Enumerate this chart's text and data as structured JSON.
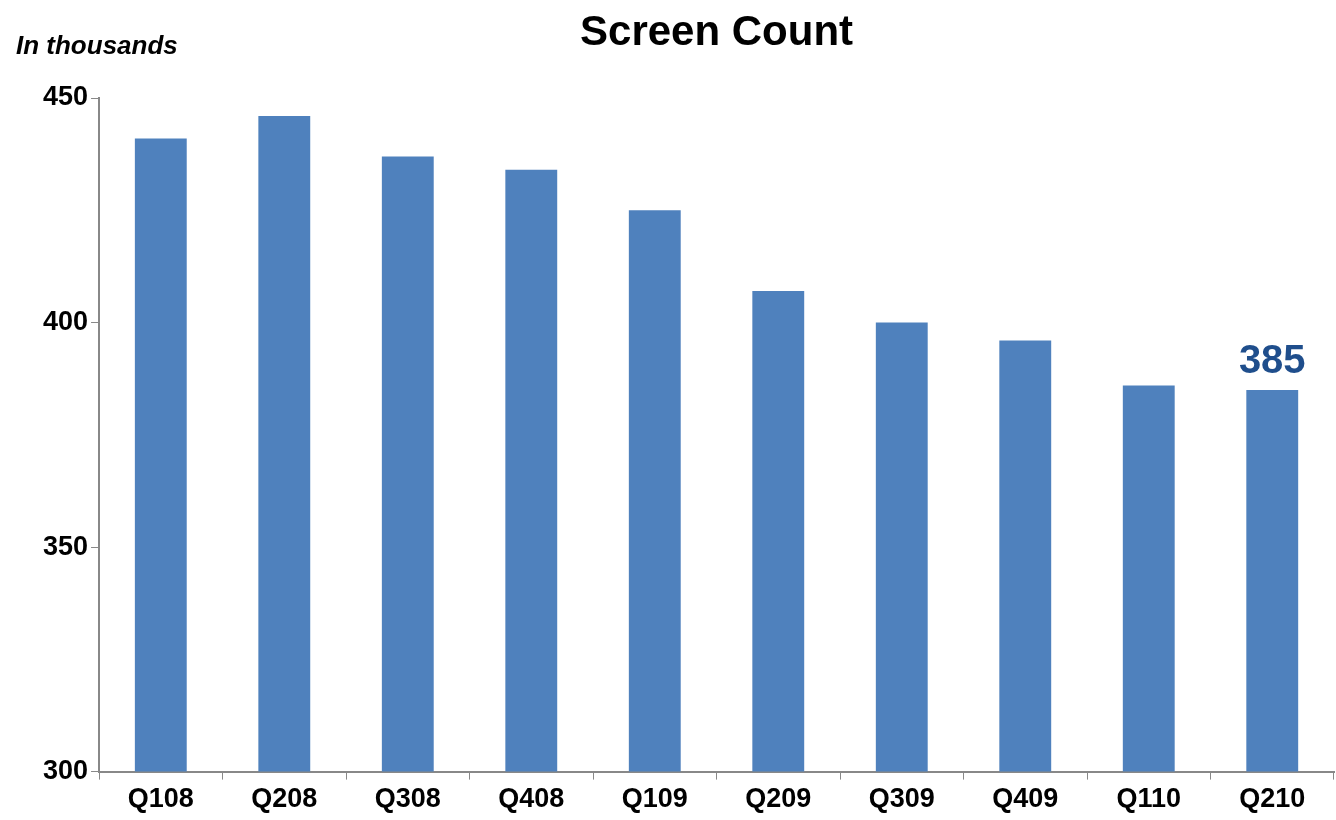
{
  "chart_data": {
    "type": "bar",
    "title": "Screen Count",
    "ylabel": "In thousands",
    "categories": [
      "Q108",
      "Q208",
      "Q308",
      "Q408",
      "Q109",
      "Q209",
      "Q309",
      "Q409",
      "Q110",
      "Q210"
    ],
    "values": [
      441,
      446,
      437,
      434,
      425,
      407,
      400,
      396,
      386,
      385
    ],
    "value_labels": [
      null,
      null,
      null,
      null,
      null,
      null,
      null,
      null,
      null,
      "385"
    ],
    "color": "#4f81bd",
    "ylim": [
      300,
      450
    ],
    "yticks": [
      300,
      350,
      400,
      450
    ],
    "grid": false,
    "legend": false
  }
}
